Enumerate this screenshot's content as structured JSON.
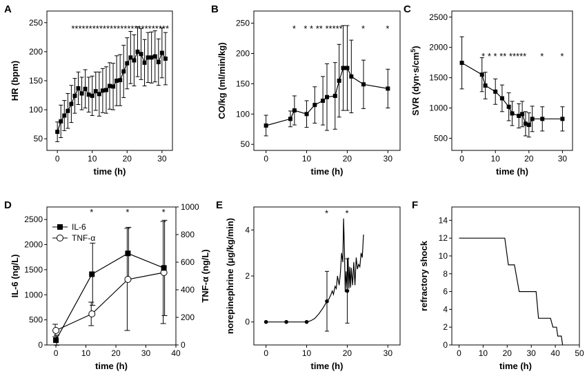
{
  "chart_data": [
    {
      "id": "A",
      "type": "line",
      "panel_label": "A",
      "xlabel": "time (h)",
      "ylabel": "HR (bpm)",
      "xlim": [
        -3,
        33
      ],
      "ylim": [
        30,
        270
      ],
      "xticks": [
        0,
        10,
        20,
        30
      ],
      "yticks": [
        50,
        100,
        150,
        200,
        250
      ],
      "series": [
        {
          "name": "HR",
          "marker": "square",
          "x": [
            0,
            1,
            2,
            3,
            4,
            5,
            6,
            7,
            8,
            9,
            10,
            11,
            12,
            13,
            14,
            15,
            16,
            17,
            18,
            19,
            20,
            21,
            22,
            23,
            24,
            25,
            26,
            27,
            28,
            29,
            30,
            31
          ],
          "y": [
            62,
            80,
            90,
            98,
            110,
            124,
            137,
            128,
            136,
            126,
            124,
            132,
            127,
            133,
            134,
            141,
            140,
            150,
            151,
            166,
            180,
            190,
            185,
            200,
            196,
            181,
            190,
            190,
            192,
            182,
            198,
            188
          ],
          "err": [
            17,
            28,
            26,
            30,
            32,
            30,
            28,
            28,
            33,
            30,
            34,
            33,
            38,
            38,
            40,
            40,
            40,
            43,
            44,
            45,
            44,
            45,
            44,
            43,
            44,
            40,
            43,
            44,
            44,
            40,
            43,
            45
          ]
        }
      ],
      "annotation": "****************************"
    },
    {
      "id": "B",
      "type": "line",
      "panel_label": "B",
      "xlabel": "time (h)",
      "ylabel": "CO/kg (ml/min/kg)",
      "xlim": [
        -3,
        33
      ],
      "ylim": [
        40,
        270
      ],
      "xticks": [
        0,
        10,
        20,
        30
      ],
      "yticks": [
        50,
        100,
        150,
        200,
        250
      ],
      "series": [
        {
          "name": "CO/kg",
          "marker": "square",
          "x": [
            0,
            6,
            7,
            10,
            12,
            14,
            15,
            17,
            18,
            19,
            20,
            21,
            24,
            30
          ],
          "y": [
            81,
            92,
            106,
            100,
            115,
            122,
            128,
            130,
            155,
            176,
            176,
            162,
            149,
            142
          ],
          "err": [
            17,
            13,
            24,
            22,
            30,
            40,
            55,
            55,
            60,
            70,
            70,
            60,
            40,
            32
          ]
        }
      ],
      "asterisks": [
        "*",
        "* * ** *****",
        "*",
        "*"
      ]
    },
    {
      "id": "C",
      "type": "line",
      "panel_label": "C",
      "xlabel": "time (h)",
      "ylabel": "SVR (dyn·s/cm5)",
      "xlim": [
        -3,
        33
      ],
      "ylim": [
        300,
        2600
      ],
      "xticks": [
        0,
        10,
        20,
        30
      ],
      "yticks": [
        500,
        1000,
        1500,
        2000,
        2500
      ],
      "series": [
        {
          "name": "SVR",
          "marker": "square",
          "x": [
            0,
            6,
            7,
            10,
            12,
            14,
            15,
            17,
            18,
            19,
            20,
            21,
            24,
            30
          ],
          "y": [
            1745,
            1550,
            1370,
            1270,
            1160,
            1020,
            910,
            870,
            900,
            740,
            720,
            820,
            820,
            820
          ],
          "err": [
            430,
            280,
            220,
            210,
            220,
            230,
            200,
            200,
            210,
            200,
            200,
            210,
            200,
            200
          ]
        }
      ],
      "asterisks": [
        "* * * ** *****",
        "*",
        "*"
      ]
    },
    {
      "id": "D",
      "type": "line",
      "panel_label": "D",
      "xlabel": "time (h)",
      "ylabel": "IL-6 (ng/L)",
      "y2label": "TNF-α (ng/L)",
      "xlim": [
        -3,
        40
      ],
      "ylim": [
        0,
        2750
      ],
      "y2lim": [
        0,
        1000
      ],
      "xticks": [
        0,
        10,
        20,
        30,
        40
      ],
      "yticks": [
        0,
        500,
        1000,
        1500,
        2000,
        2500
      ],
      "y2ticks": [
        0,
        200,
        400,
        600,
        800,
        1000
      ],
      "legend": {
        "location": "top-left",
        "entries": [
          "IL-6",
          "TNF-α"
        ]
      },
      "series": [
        {
          "name": "IL-6",
          "axis": "left",
          "marker": "filled-square",
          "x": [
            0,
            12,
            24,
            36
          ],
          "y": [
            95,
            1410,
            1825,
            1535
          ],
          "err": [
            100,
            620,
            520,
            950
          ]
        },
        {
          "name": "TNF-α",
          "axis": "right",
          "marker": "open-circle",
          "x": [
            0,
            12,
            24,
            36
          ],
          "y": [
            105,
            225,
            475,
            525
          ],
          "err": [
            45,
            85,
            370,
            370
          ]
        }
      ],
      "asterisks": [
        "*",
        "*",
        "*"
      ]
    },
    {
      "id": "E",
      "type": "line",
      "panel_label": "E",
      "xlabel": "time (h)",
      "ylabel": "norepinephrine (μg/kg/min)",
      "xlim": [
        -3,
        33
      ],
      "ylim": [
        -1,
        5
      ],
      "xticks": [
        0,
        10,
        20,
        30
      ],
      "yticks": [
        0,
        2,
        4
      ],
      "points": {
        "x": [
          0,
          5,
          10,
          15,
          20
        ],
        "y": [
          0,
          0,
          0,
          0.9,
          1.35
        ],
        "err": [
          0,
          0,
          0,
          1.3,
          1.4
        ]
      },
      "curve": {
        "x": [
          10,
          11,
          12,
          13,
          14,
          14.5,
          15,
          15.5,
          16,
          16.3,
          16.6,
          17,
          17.3,
          17.6,
          18,
          18.3,
          18.6,
          18.9,
          19.1,
          19.3,
          19.5,
          19.7,
          20,
          20.2,
          20.4,
          20.6,
          20.8,
          21,
          21.3,
          21.6,
          21.9,
          22.2,
          22.5,
          22.8,
          23.1,
          23.4,
          23.7,
          24
        ],
        "y": [
          0,
          0.05,
          0.15,
          0.35,
          0.6,
          0.75,
          0.9,
          1.0,
          1.2,
          1.35,
          1.2,
          1.55,
          1.45,
          2.0,
          1.6,
          2.1,
          3.0,
          2.6,
          4.5,
          3.2,
          1.3,
          2.2,
          1.35,
          2.8,
          1.45,
          2.4,
          1.5,
          2.35,
          1.6,
          2.6,
          1.6,
          2.8,
          2.3,
          2.5,
          2.4,
          3.0,
          2.8,
          3.8
        ]
      },
      "asterisks": [
        "*",
        "*"
      ]
    },
    {
      "id": "F",
      "type": "line",
      "panel_label": "F",
      "xlabel": "time (h)",
      "ylabel": "refractory shock",
      "xlim": [
        -3,
        50
      ],
      "ylim": [
        0,
        15.5
      ],
      "xticks": [
        0,
        10,
        20,
        30,
        40,
        50
      ],
      "yticks": [
        0,
        2,
        4,
        6,
        8,
        10,
        12,
        14
      ],
      "step": {
        "x": [
          0,
          19,
          20.5,
          23,
          25,
          32,
          33,
          38,
          39,
          40.5,
          41,
          42.5,
          43
        ],
        "y": [
          12,
          12,
          9,
          9,
          6,
          6,
          3,
          3,
          2,
          2,
          1,
          1,
          0
        ]
      }
    }
  ]
}
